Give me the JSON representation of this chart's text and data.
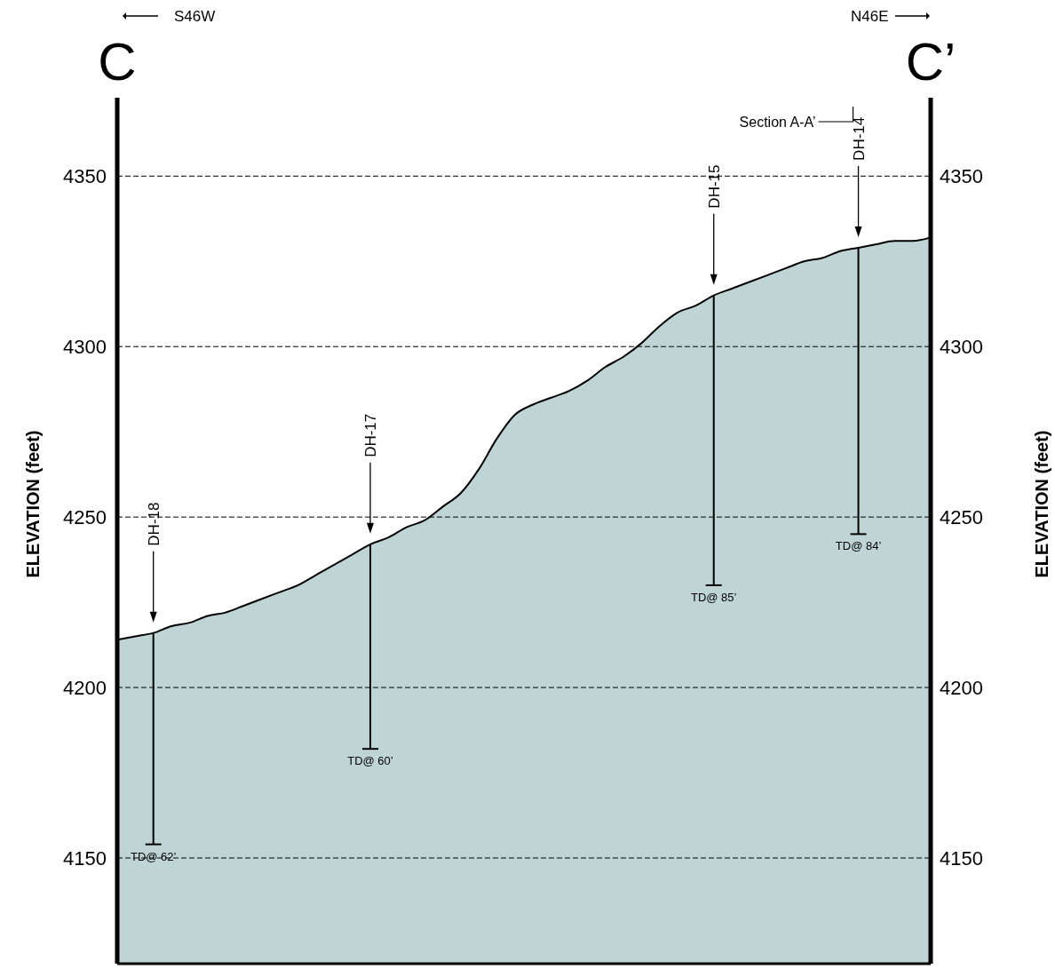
{
  "chart_data": {
    "type": "area",
    "ylabel": "ELEVATION (feet)",
    "y2label": "ELEVATION (feet)",
    "categories": [
      null,
      null,
      "DH-18",
      null,
      null,
      null,
      null,
      null,
      null,
      null,
      null,
      null,
      null,
      null,
      "DH-17",
      null,
      null,
      null,
      null,
      null,
      null,
      null,
      null,
      null,
      null,
      null,
      null,
      null,
      null,
      null,
      null,
      null,
      null,
      "DH-15",
      null,
      null,
      null,
      null,
      null,
      null,
      null,
      "DH-14",
      null,
      null,
      null,
      null
    ],
    "series": [
      {
        "color": "#bfd5d5",
        "values": [
          4214,
          4215,
          4216,
          4218,
          4219,
          4221,
          4222,
          4224,
          4226,
          4228,
          4230,
          4233,
          4236,
          4239,
          4242,
          4244,
          4247,
          4249,
          4253,
          4257,
          4264,
          4273,
          4280,
          4283,
          4285,
          4287,
          4290,
          4294,
          4297,
          4301,
          4306,
          4310,
          4312,
          4315,
          4317,
          4319,
          4321,
          4323,
          4325,
          4326,
          4328,
          4329,
          4330,
          4331,
          4331,
          4332
        ]
      },
      {
        "type": "bar",
        "color": "#000000",
        "values": [
          null,
          null,
          62,
          null,
          null,
          null,
          null,
          null,
          null,
          null,
          null,
          null,
          null,
          null,
          60,
          null,
          null,
          null,
          null,
          null,
          null,
          null,
          null,
          null,
          null,
          null,
          null,
          null,
          null,
          null,
          null,
          null,
          null,
          85,
          null,
          null,
          null,
          null,
          null,
          null,
          null,
          84,
          null,
          null,
          null,
          null
        ],
        "base": [
          null,
          null,
          4154,
          null,
          null,
          null,
          null,
          null,
          null,
          null,
          null,
          null,
          null,
          null,
          4182,
          null,
          null,
          null,
          null,
          null,
          null,
          null,
          null,
          null,
          null,
          null,
          null,
          null,
          null,
          null,
          null,
          null,
          null,
          4230,
          null,
          null,
          null,
          null,
          null,
          null,
          null,
          4245,
          null,
          null,
          null,
          null
        ],
        "value_labels": [
          null,
          null,
          "TD@ 62’",
          null,
          null,
          null,
          null,
          null,
          null,
          null,
          null,
          null,
          null,
          null,
          "TD@ 60’",
          null,
          null,
          null,
          null,
          null,
          null,
          null,
          null,
          null,
          null,
          null,
          null,
          null,
          null,
          null,
          null,
          null,
          null,
          "TD@ 85’",
          null,
          null,
          null,
          null,
          null,
          null,
          null,
          "TD@ 84’",
          null,
          null,
          null,
          null
        ]
      }
    ],
    "ylim": [
      4119,
      4373
    ],
    "yticks": [
      4150,
      4200,
      4250,
      4300,
      4350
    ],
    "y2lim": [
      4119,
      4373
    ],
    "y2ticks": [
      4150,
      4200,
      4250,
      4300,
      4350
    ],
    "grid": "y",
    "line_style": "dashed",
    "annotations": [
      "S46W",
      "N46E",
      "C",
      "C’",
      "Section A-A’"
    ]
  }
}
